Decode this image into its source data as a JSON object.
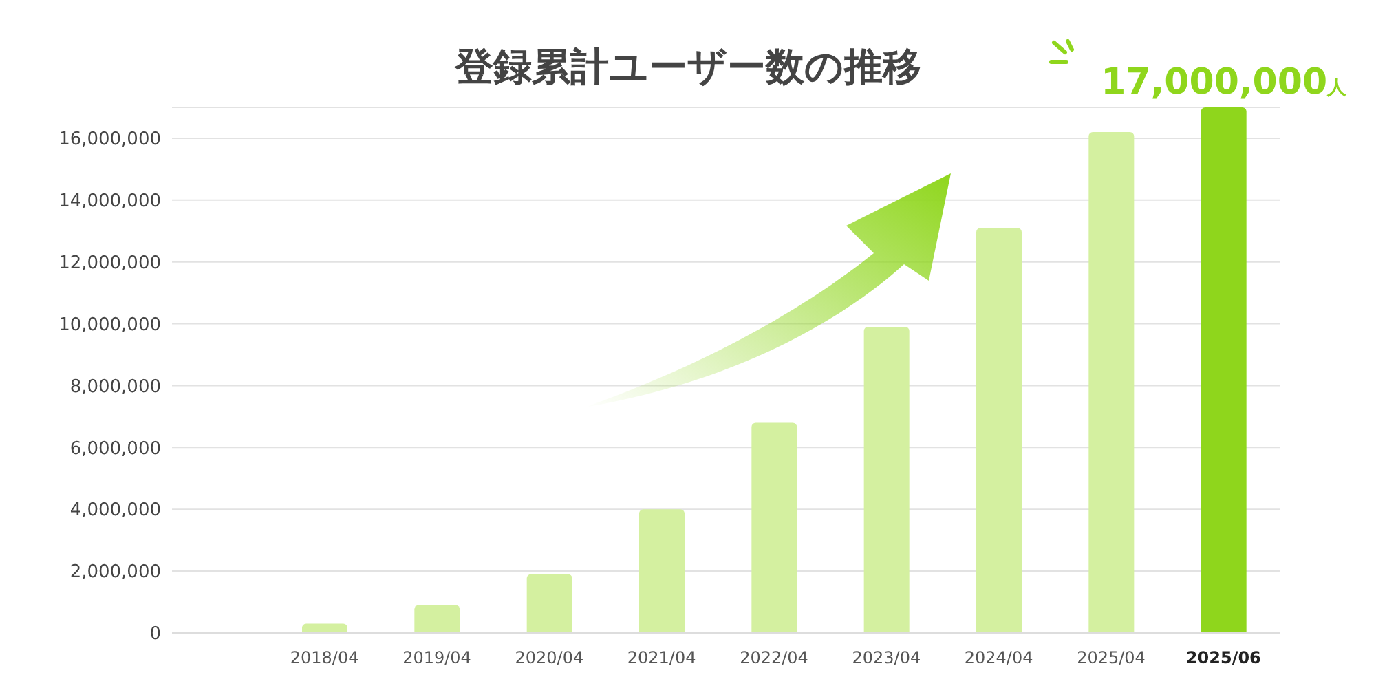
{
  "chart_data": {
    "type": "bar",
    "title": "登録累計ユーザー数の推移",
    "categories": [
      "2018/04",
      "2019/04",
      "2020/04",
      "2021/04",
      "2022/04",
      "2023/04",
      "2024/04",
      "2025/04",
      "2025/06"
    ],
    "values": [
      300000,
      900000,
      1900000,
      4000000,
      6800000,
      9900000,
      13100000,
      16200000,
      17000000
    ],
    "colors": [
      "#d4f0a0",
      "#d4f0a0",
      "#d4f0a0",
      "#d4f0a0",
      "#d4f0a0",
      "#d4f0a0",
      "#d4f0a0",
      "#d4f0a0",
      "#8fd61c"
    ],
    "value_labels": [
      null,
      null,
      null,
      null,
      null,
      null,
      null,
      null,
      "17,000,000人"
    ],
    "ylim": [
      0,
      17000000
    ],
    "yticks": [
      0,
      {
        "value": 2000000,
        "label": "2,000,000"
      },
      {
        "value": 4000000,
        "label": "4,000,000"
      },
      {
        "value": 6000000,
        "label": "6,000,000"
      },
      {
        "value": 8000000,
        "label": "8,000,000"
      },
      {
        "value": 10000000,
        "label": "10,000,000"
      },
      {
        "value": 12000000,
        "label": "12,000,000"
      },
      {
        "value": 14000000,
        "label": "14,000,000"
      },
      {
        "value": 16000000,
        "label": "16,000,000"
      }
    ],
    "grid": "y"
  }
}
